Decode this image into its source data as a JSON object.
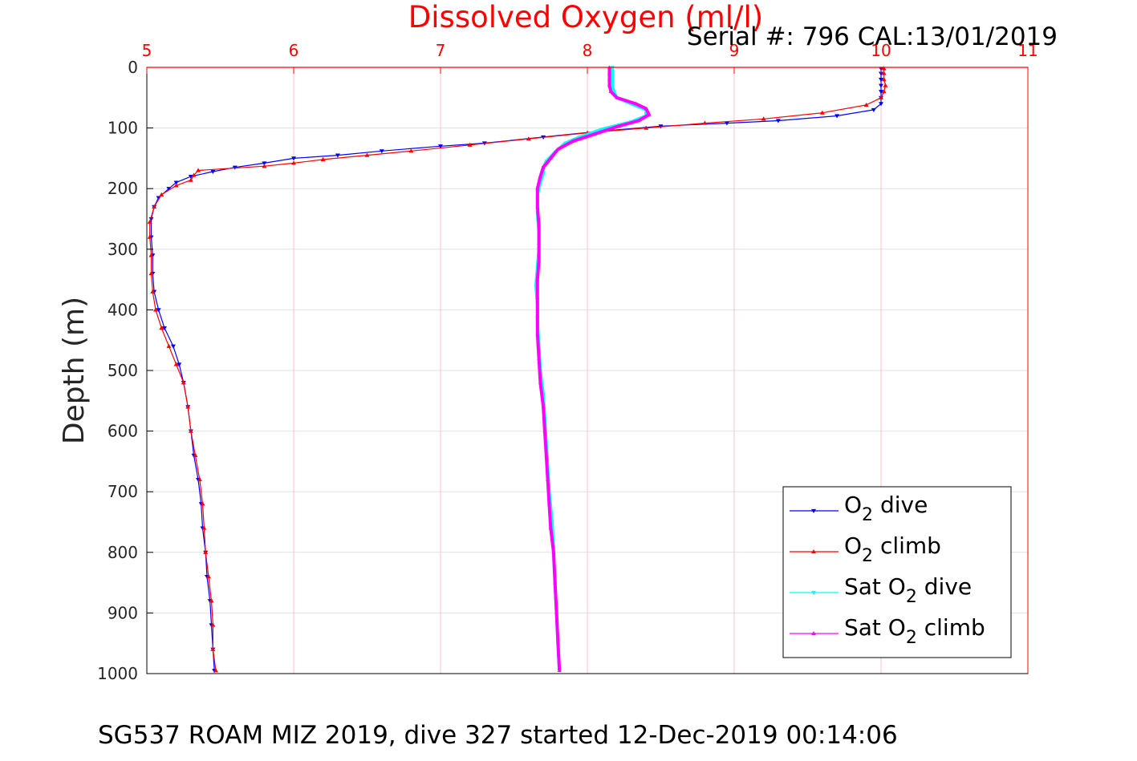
{
  "chart_data": {
    "type": "scatter",
    "title": "Dissolved Oxygen (ml/l)",
    "serial_note": "Serial #: 796  CAL:13/01/2019",
    "footer": "SG537 ROAM MIZ 2019, dive 327 started 12-Dec-2019 00:14:06",
    "xlabel": "Dissolved Oxygen (ml/l)",
    "ylabel": "Depth (m)",
    "xlim": [
      5,
      11
    ],
    "ylim": [
      0,
      1000
    ],
    "y_reversed": true,
    "x_axis_position": "top",
    "grid": true,
    "xticks": [
      "5",
      "6",
      "7",
      "8",
      "9",
      "10",
      "11"
    ],
    "yticks": [
      "0",
      "100",
      "200",
      "300",
      "400",
      "500",
      "600",
      "700",
      "800",
      "900",
      "1000"
    ],
    "legend": {
      "placement": "bottom-right",
      "entries": [
        {
          "base": "O",
          "sub": "2",
          "suffix": " dive",
          "series": "o2_dive"
        },
        {
          "base": "O",
          "sub": "2",
          "suffix": " climb",
          "series": "o2_climb"
        },
        {
          "base": "Sat O",
          "sub": "2",
          "suffix": " dive",
          "series": "sat_o2_dive"
        },
        {
          "base": "Sat O",
          "sub": "2",
          "suffix": " climb",
          "series": "sat_o2_climb"
        }
      ]
    },
    "colors": {
      "x_axis_text": "#ff0000",
      "title": "#ff0000",
      "x_grid": "#ffc0cb",
      "y_grid": "#e0e0e0"
    },
    "series": [
      {
        "id": "o2_dive",
        "color": "#0000ff",
        "marker": "triangle-down",
        "points": [
          [
            10.0,
            2
          ],
          [
            10.0,
            10
          ],
          [
            10.0,
            20
          ],
          [
            10.0,
            30
          ],
          [
            10.0,
            40
          ],
          [
            10.0,
            50
          ],
          [
            10.0,
            60
          ],
          [
            9.95,
            70
          ],
          [
            9.7,
            80
          ],
          [
            9.3,
            88
          ],
          [
            8.95,
            92
          ],
          [
            8.5,
            97
          ],
          [
            8.1,
            105
          ],
          [
            7.7,
            115
          ],
          [
            7.3,
            125
          ],
          [
            7.0,
            130
          ],
          [
            6.6,
            138
          ],
          [
            6.3,
            145
          ],
          [
            6.0,
            150
          ],
          [
            5.8,
            158
          ],
          [
            5.6,
            165
          ],
          [
            5.45,
            172
          ],
          [
            5.3,
            180
          ],
          [
            5.2,
            190
          ],
          [
            5.15,
            200
          ],
          [
            5.08,
            215
          ],
          [
            5.05,
            230
          ],
          [
            5.03,
            250
          ],
          [
            5.03,
            280
          ],
          [
            5.04,
            310
          ],
          [
            5.04,
            340
          ],
          [
            5.05,
            370
          ],
          [
            5.08,
            400
          ],
          [
            5.12,
            430
          ],
          [
            5.18,
            460
          ],
          [
            5.22,
            490
          ],
          [
            5.25,
            520
          ],
          [
            5.28,
            560
          ],
          [
            5.3,
            600
          ],
          [
            5.32,
            640
          ],
          [
            5.35,
            680
          ],
          [
            5.37,
            720
          ],
          [
            5.38,
            760
          ],
          [
            5.4,
            800
          ],
          [
            5.41,
            840
          ],
          [
            5.43,
            880
          ],
          [
            5.44,
            920
          ],
          [
            5.45,
            960
          ],
          [
            5.46,
            995
          ]
        ]
      },
      {
        "id": "o2_climb",
        "color": "#ff0000",
        "marker": "triangle-up",
        "points": [
          [
            10.02,
            2
          ],
          [
            10.02,
            10
          ],
          [
            10.02,
            20
          ],
          [
            10.03,
            30
          ],
          [
            10.02,
            40
          ],
          [
            10.0,
            50
          ],
          [
            9.9,
            62
          ],
          [
            9.6,
            75
          ],
          [
            9.2,
            85
          ],
          [
            8.8,
            92
          ],
          [
            8.4,
            100
          ],
          [
            8.0,
            108
          ],
          [
            7.6,
            118
          ],
          [
            7.2,
            128
          ],
          [
            6.8,
            138
          ],
          [
            6.5,
            145
          ],
          [
            6.2,
            152
          ],
          [
            6.0,
            158
          ],
          [
            5.8,
            163
          ],
          [
            5.35,
            170
          ],
          [
            5.32,
            178
          ],
          [
            5.3,
            186
          ],
          [
            5.2,
            195
          ],
          [
            5.1,
            210
          ],
          [
            5.05,
            230
          ],
          [
            5.02,
            255
          ],
          [
            5.02,
            280
          ],
          [
            5.03,
            310
          ],
          [
            5.03,
            340
          ],
          [
            5.04,
            370
          ],
          [
            5.06,
            400
          ],
          [
            5.1,
            430
          ],
          [
            5.15,
            460
          ],
          [
            5.2,
            490
          ],
          [
            5.25,
            520
          ],
          [
            5.28,
            560
          ],
          [
            5.3,
            600
          ],
          [
            5.33,
            640
          ],
          [
            5.36,
            680
          ],
          [
            5.38,
            720
          ],
          [
            5.39,
            760
          ],
          [
            5.4,
            800
          ],
          [
            5.42,
            840
          ],
          [
            5.44,
            880
          ],
          [
            5.45,
            920
          ],
          [
            5.45,
            960
          ],
          [
            5.47,
            995
          ]
        ]
      },
      {
        "id": "sat_o2_dive",
        "color": "#00ffff",
        "marker": "triangle-down",
        "points": [
          [
            8.17,
            0
          ],
          [
            8.17,
            10
          ],
          [
            8.17,
            20
          ],
          [
            8.17,
            30
          ],
          [
            8.18,
            40
          ],
          [
            8.2,
            50
          ],
          [
            8.3,
            60
          ],
          [
            8.4,
            70
          ],
          [
            8.4,
            80
          ],
          [
            8.3,
            90
          ],
          [
            8.1,
            102
          ],
          [
            7.95,
            115
          ],
          [
            7.85,
            125
          ],
          [
            7.78,
            140
          ],
          [
            7.72,
            155
          ],
          [
            7.7,
            165
          ],
          [
            7.7,
            175
          ],
          [
            7.68,
            190
          ],
          [
            7.66,
            210
          ],
          [
            7.66,
            240
          ],
          [
            7.67,
            270
          ],
          [
            7.67,
            300
          ],
          [
            7.66,
            330
          ],
          [
            7.65,
            360
          ],
          [
            7.66,
            390
          ],
          [
            7.66,
            420
          ],
          [
            7.67,
            460
          ],
          [
            7.68,
            500
          ],
          [
            7.7,
            540
          ],
          [
            7.71,
            580
          ],
          [
            7.72,
            620
          ],
          [
            7.73,
            660
          ],
          [
            7.74,
            700
          ],
          [
            7.76,
            750
          ],
          [
            7.77,
            800
          ],
          [
            7.78,
            850
          ],
          [
            7.79,
            900
          ],
          [
            7.8,
            950
          ],
          [
            7.81,
            995
          ]
        ]
      },
      {
        "id": "sat_o2_climb",
        "color": "#ff00ff",
        "marker": "triangle-up",
        "points": [
          [
            8.15,
            0
          ],
          [
            8.15,
            10
          ],
          [
            8.15,
            20
          ],
          [
            8.15,
            30
          ],
          [
            8.16,
            40
          ],
          [
            8.2,
            50
          ],
          [
            8.33,
            60
          ],
          [
            8.4,
            68
          ],
          [
            8.42,
            78
          ],
          [
            8.35,
            88
          ],
          [
            8.2,
            98
          ],
          [
            8.05,
            110
          ],
          [
            7.9,
            122
          ],
          [
            7.8,
            135
          ],
          [
            7.75,
            150
          ],
          [
            7.7,
            165
          ],
          [
            7.68,
            180
          ],
          [
            7.66,
            200
          ],
          [
            7.66,
            230
          ],
          [
            7.67,
            260
          ],
          [
            7.67,
            290
          ],
          [
            7.67,
            320
          ],
          [
            7.66,
            350
          ],
          [
            7.66,
            380
          ],
          [
            7.66,
            410
          ],
          [
            7.66,
            440
          ],
          [
            7.67,
            480
          ],
          [
            7.68,
            520
          ],
          [
            7.7,
            560
          ],
          [
            7.71,
            600
          ],
          [
            7.72,
            640
          ],
          [
            7.73,
            680
          ],
          [
            7.74,
            720
          ],
          [
            7.75,
            760
          ],
          [
            7.77,
            800
          ],
          [
            7.78,
            850
          ],
          [
            7.79,
            900
          ],
          [
            7.8,
            950
          ],
          [
            7.81,
            995
          ]
        ]
      }
    ]
  }
}
